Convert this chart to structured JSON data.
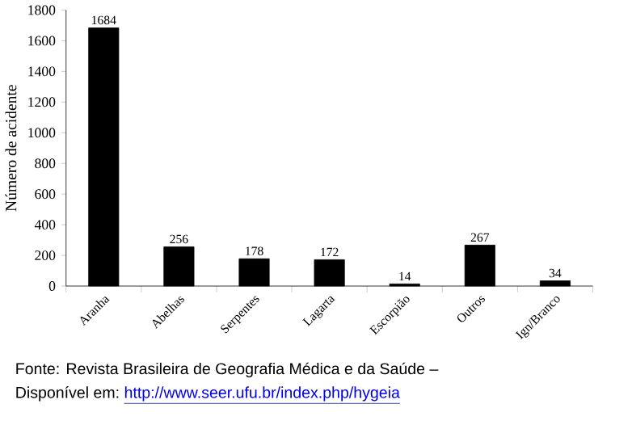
{
  "chart_data": {
    "type": "bar",
    "ylabel": "Número de acidente",
    "categories": [
      "Aranha",
      "Abelhas",
      "Serpentes",
      "Lagarta",
      "Escorpião",
      "Outros",
      "Ign/Branco"
    ],
    "values": [
      1684,
      256,
      178,
      172,
      14,
      267,
      34
    ],
    "color": "#000000",
    "ylim": [
      0,
      1800
    ],
    "yticks": [
      0,
      200,
      400,
      600,
      800,
      1000,
      1200,
      1400,
      1600,
      1800
    ],
    "data_labels": true,
    "annotations": [
      "Fonte: Revista Brasileira de Geografia Médica e da Saúde –",
      "Disponível em:",
      "http://www.seer.ufu.br/index.php/hygeia"
    ]
  }
}
